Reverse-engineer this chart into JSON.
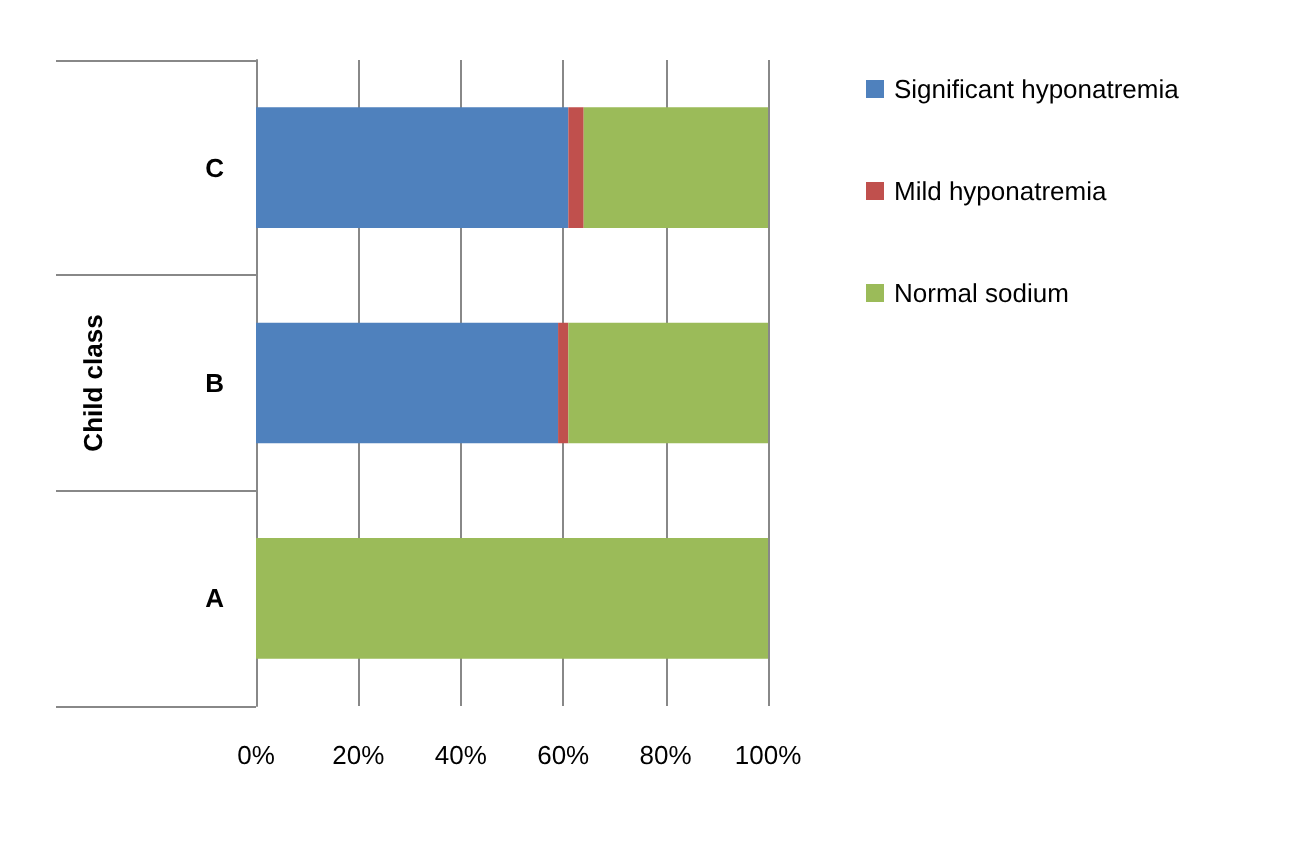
{
  "chart_data": {
    "type": "bar",
    "orientation": "horizontal",
    "stacked": true,
    "ylabel": "Child class",
    "categories": [
      "C",
      "B",
      "A"
    ],
    "series": [
      {
        "name": "Significant hyponatremia",
        "color": "#4f81bd",
        "values": [
          61,
          59,
          0
        ]
      },
      {
        "name": "Mild hyponatremia",
        "color": "#c0504d",
        "values": [
          3,
          2,
          0
        ]
      },
      {
        "name": "Normal sodium",
        "color": "#9bbb59",
        "values": [
          36,
          39,
          100
        ]
      }
    ],
    "xlim": [
      0,
      100
    ],
    "xticks": [
      {
        "value": 0,
        "label": "0%"
      },
      {
        "value": 20,
        "label": "20%"
      },
      {
        "value": 40,
        "label": "40%"
      },
      {
        "value": 60,
        "label": "60%"
      },
      {
        "value": 80,
        "label": "80%"
      },
      {
        "value": 100,
        "label": "100%"
      }
    ],
    "grid": "x",
    "legend": "right"
  }
}
